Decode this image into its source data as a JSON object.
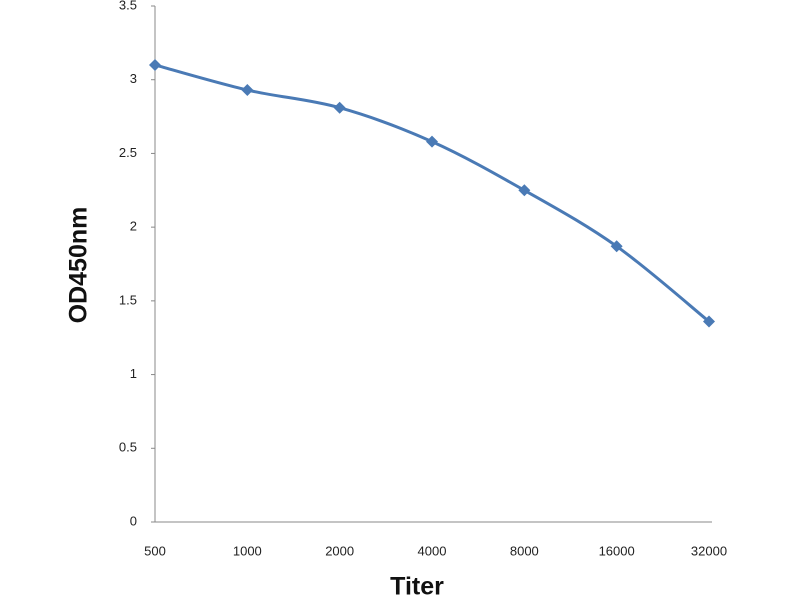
{
  "chart_data": {
    "type": "line",
    "x_label": "Titer",
    "y_label": "OD450nm",
    "categories": [
      "500",
      "1000",
      "2000",
      "4000",
      "8000",
      "16000",
      "32000"
    ],
    "series": [
      {
        "name": "OD450nm",
        "color": "#4a7ab5",
        "values": [
          3.1,
          2.93,
          2.81,
          2.58,
          2.25,
          1.87,
          1.36
        ]
      }
    ],
    "ylim": [
      0,
      3.5
    ],
    "yticks": [
      0,
      0.5,
      1,
      1.5,
      2,
      2.5,
      3,
      3.5
    ],
    "grid": false
  }
}
